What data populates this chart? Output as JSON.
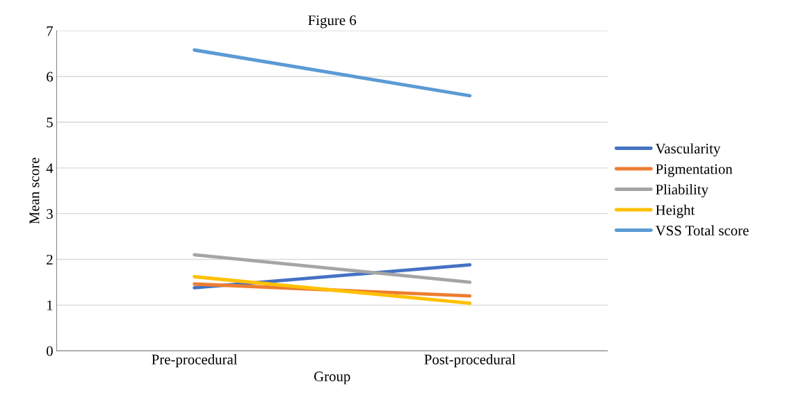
{
  "chart_data": {
    "type": "line",
    "title": "Figure 6",
    "xlabel": "Group",
    "ylabel": "Mean score",
    "categories": [
      "Pre-procedural",
      "Post-procedural"
    ],
    "series": [
      {
        "name": "Vascularity",
        "color": "#4472c4",
        "values": [
          1.38,
          1.88
        ]
      },
      {
        "name": "Pigmentation",
        "color": "#ed7d31",
        "values": [
          1.46,
          1.2
        ]
      },
      {
        "name": "Pliability",
        "color": "#a5a5a5",
        "values": [
          2.1,
          1.5
        ]
      },
      {
        "name": "Height",
        "color": "#ffc000",
        "values": [
          1.62,
          1.04
        ]
      },
      {
        "name": "VSS Total score",
        "color": "#5b9bd5",
        "values": [
          6.58,
          5.58
        ]
      }
    ],
    "ylim": [
      0,
      7
    ],
    "yticks": [
      0,
      1,
      2,
      3,
      4,
      5,
      6,
      7
    ],
    "grid": "y",
    "legend": "right",
    "marker": "none",
    "line_style": "solid"
  }
}
